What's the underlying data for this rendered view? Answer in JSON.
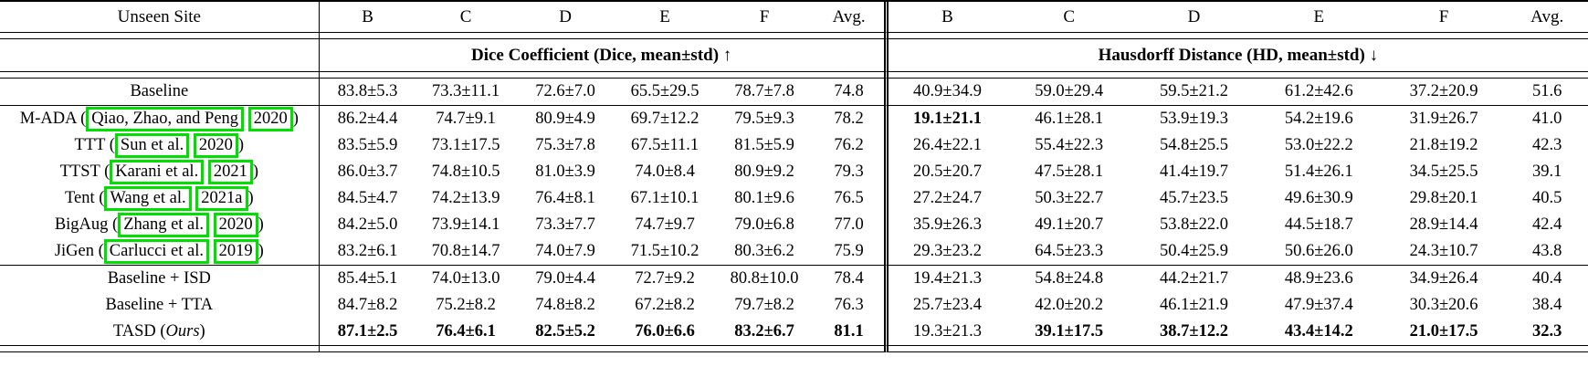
{
  "header": {
    "site_col": "Unseen Site",
    "sites": [
      "B",
      "C",
      "D",
      "E",
      "F",
      "Avg."
    ],
    "dice_title": "Dice Coefficient (Dice, mean±std) ↑",
    "hd_title": "Hausdorff Distance (HD, mean±std) ↓"
  },
  "link_box_color": "#00e000",
  "chart_data": {
    "type": "table",
    "columns_left_metric": "Dice Coefficient (Dice, mean±std)",
    "columns_right_metric": "Hausdorff Distance (HD, mean±std)",
    "sites": [
      "B",
      "C",
      "D",
      "E",
      "F",
      "Avg."
    ]
  },
  "rows": [
    {
      "label": [
        {
          "t": "text",
          "v": "Baseline"
        }
      ],
      "dice": [
        "83.8±5.3",
        "73.3±11.1",
        "72.6±7.0",
        "65.5±29.5",
        "78.7±7.8",
        "74.8"
      ],
      "hd": [
        "40.9±34.9",
        "59.0±29.4",
        "59.5±21.2",
        "61.2±42.6",
        "37.2±20.9",
        "51.6"
      ],
      "dice_bold": [],
      "hd_bold": [],
      "group_start": false
    },
    {
      "label": [
        {
          "t": "text",
          "v": "M-ADA ("
        },
        {
          "t": "link",
          "v": "Qiao, Zhao, and Peng"
        },
        {
          "t": "text",
          "v": " "
        },
        {
          "t": "link",
          "v": "2020"
        },
        {
          "t": "text",
          "v": ")"
        }
      ],
      "dice": [
        "86.2±4.4",
        "74.7±9.1",
        "80.9±4.9",
        "69.7±12.2",
        "79.5±9.3",
        "78.2"
      ],
      "hd": [
        "19.1±21.1",
        "46.1±28.1",
        "53.9±19.3",
        "54.2±19.6",
        "31.9±26.7",
        "41.0"
      ],
      "dice_bold": [],
      "hd_bold": [
        0
      ],
      "group_start": true
    },
    {
      "label": [
        {
          "t": "text",
          "v": "TTT ("
        },
        {
          "t": "link",
          "v": "Sun et al."
        },
        {
          "t": "text",
          "v": " "
        },
        {
          "t": "link",
          "v": "2020"
        },
        {
          "t": "text",
          "v": ")"
        }
      ],
      "dice": [
        "83.5±5.9",
        "73.1±17.5",
        "75.3±7.8",
        "67.5±11.1",
        "81.5±5.9",
        "76.2"
      ],
      "hd": [
        "26.4±22.1",
        "55.4±22.3",
        "54.8±25.5",
        "53.0±22.2",
        "21.8±19.2",
        "42.3"
      ],
      "dice_bold": [],
      "hd_bold": [],
      "group_start": false
    },
    {
      "label": [
        {
          "t": "text",
          "v": "TTST ("
        },
        {
          "t": "link",
          "v": "Karani et al."
        },
        {
          "t": "text",
          "v": " "
        },
        {
          "t": "link",
          "v": "2021"
        },
        {
          "t": "text",
          "v": ")"
        }
      ],
      "dice": [
        "86.0±3.7",
        "74.8±10.5",
        "81.0±3.9",
        "74.0±8.4",
        "80.9±9.2",
        "79.3"
      ],
      "hd": [
        "20.5±20.7",
        "47.5±28.1",
        "41.4±19.7",
        "51.4±26.1",
        "34.5±25.5",
        "39.1"
      ],
      "dice_bold": [],
      "hd_bold": [],
      "group_start": false
    },
    {
      "label": [
        {
          "t": "text",
          "v": "Tent ("
        },
        {
          "t": "link",
          "v": "Wang et al."
        },
        {
          "t": "text",
          "v": " "
        },
        {
          "t": "link",
          "v": "2021a"
        },
        {
          "t": "text",
          "v": ")"
        }
      ],
      "dice": [
        "84.5±4.7",
        "74.2±13.9",
        "76.4±8.1",
        "67.1±10.1",
        "80.1±9.6",
        "76.5"
      ],
      "hd": [
        "27.2±24.7",
        "50.3±22.7",
        "45.7±23.5",
        "49.6±30.9",
        "29.8±20.1",
        "40.5"
      ],
      "dice_bold": [],
      "hd_bold": [],
      "group_start": false
    },
    {
      "label": [
        {
          "t": "text",
          "v": "BigAug ("
        },
        {
          "t": "link",
          "v": "Zhang et al."
        },
        {
          "t": "text",
          "v": " "
        },
        {
          "t": "link",
          "v": "2020"
        },
        {
          "t": "text",
          "v": ")"
        }
      ],
      "dice": [
        "84.2±5.0",
        "73.9±14.1",
        "73.3±7.7",
        "74.7±9.7",
        "79.0±6.8",
        "77.0"
      ],
      "hd": [
        "35.9±26.3",
        "49.1±20.7",
        "53.8±22.0",
        "44.5±18.7",
        "28.9±14.4",
        "42.4"
      ],
      "dice_bold": [],
      "hd_bold": [],
      "group_start": false
    },
    {
      "label": [
        {
          "t": "text",
          "v": "JiGen ("
        },
        {
          "t": "link",
          "v": "Carlucci et al."
        },
        {
          "t": "text",
          "v": " "
        },
        {
          "t": "link",
          "v": "2019"
        },
        {
          "t": "text",
          "v": ")"
        }
      ],
      "dice": [
        "83.2±6.1",
        "70.8±14.7",
        "74.0±7.9",
        "71.5±10.2",
        "80.3±6.2",
        "75.9"
      ],
      "hd": [
        "29.3±23.2",
        "64.5±23.3",
        "50.4±25.9",
        "50.6±26.0",
        "24.3±10.7",
        "43.8"
      ],
      "dice_bold": [],
      "hd_bold": [],
      "group_start": false
    },
    {
      "label": [
        {
          "t": "text",
          "v": "Baseline + ISD"
        }
      ],
      "dice": [
        "85.4±5.1",
        "74.0±13.0",
        "79.0±4.4",
        "72.7±9.2",
        "80.8±10.0",
        "78.4"
      ],
      "hd": [
        "19.4±21.3",
        "54.8±24.8",
        "44.2±21.7",
        "48.9±23.6",
        "34.9±26.4",
        "40.4"
      ],
      "dice_bold": [],
      "hd_bold": [],
      "group_start": true
    },
    {
      "label": [
        {
          "t": "text",
          "v": "Baseline + TTA"
        }
      ],
      "dice": [
        "84.7±8.2",
        "75.2±8.2",
        "74.8±8.2",
        "67.2±8.2",
        "79.7±8.2",
        "76.3"
      ],
      "hd": [
        "25.7±23.4",
        "42.0±20.2",
        "46.1±21.9",
        "47.9±37.4",
        "30.3±20.6",
        "38.4"
      ],
      "dice_bold": [],
      "hd_bold": [],
      "group_start": false
    },
    {
      "label": [
        {
          "t": "text",
          "v": "TASD ("
        },
        {
          "t": "italic",
          "v": "Ours"
        },
        {
          "t": "text",
          "v": ")"
        }
      ],
      "dice": [
        "87.1±2.5",
        "76.4±6.1",
        "82.5±5.2",
        "76.0±6.6",
        "83.2±6.7",
        "81.1"
      ],
      "hd": [
        "19.3±21.3",
        "39.1±17.5",
        "38.7±12.2",
        "43.4±14.2",
        "21.0±17.5",
        "32.3"
      ],
      "dice_bold": [
        0,
        1,
        2,
        3,
        4,
        5
      ],
      "hd_bold": [
        1,
        2,
        3,
        4,
        5
      ],
      "group_start": false
    }
  ]
}
